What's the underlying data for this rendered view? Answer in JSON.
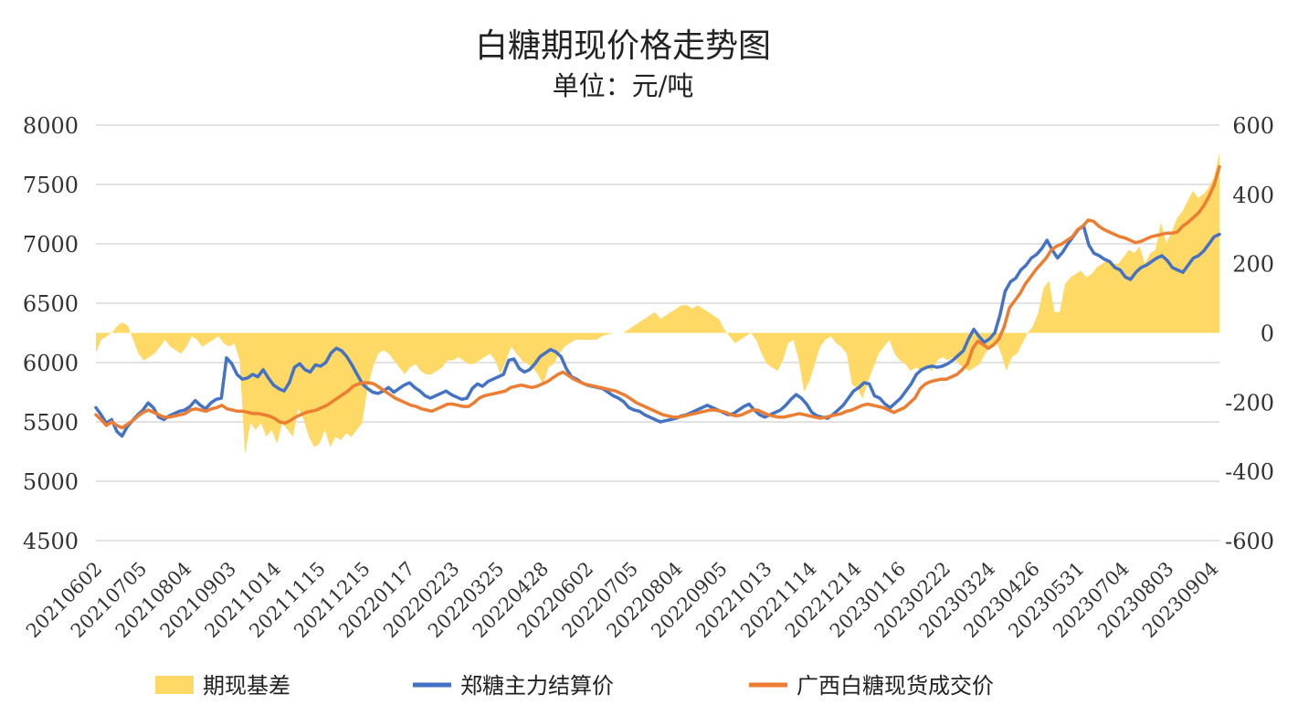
{
  "chart_data": {
    "type": "line",
    "title": "白糖期现价格走势图",
    "subtitle": "单位：元/吨",
    "y_left": {
      "min": 4500,
      "max": 8000,
      "ticks": [
        4500,
        5000,
        5500,
        6000,
        6500,
        7000,
        7500,
        8000
      ]
    },
    "y_right": {
      "min": -600,
      "max": 600,
      "ticks": [
        -600,
        -400,
        -200,
        0,
        200,
        400,
        600
      ]
    },
    "grid": true,
    "legend_position": "bottom",
    "x_tick_labels": [
      "20210602",
      "20210705",
      "20210804",
      "20210903",
      "20211014",
      "20211115",
      "20211215",
      "20220117",
      "20220223",
      "20220325",
      "20220428",
      "20220602",
      "20220705",
      "20220804",
      "20220905",
      "20221013",
      "20221114",
      "20221214",
      "20230116",
      "20230222",
      "20230324",
      "20230426",
      "20230531",
      "20230704",
      "20230803",
      "20230904"
    ],
    "series": [
      {
        "name": "期现基差",
        "kind": "area",
        "axis": "right",
        "color": "#FFD966",
        "values": [
          -60,
          -20,
          -10,
          0,
          20,
          30,
          20,
          -20,
          -60,
          -80,
          -70,
          -60,
          -40,
          -20,
          -40,
          -50,
          -60,
          -40,
          -10,
          -20,
          -40,
          -30,
          -20,
          -10,
          -30,
          -40,
          -30,
          -80,
          -350,
          -260,
          -280,
          -260,
          -300,
          -280,
          -320,
          -260,
          -280,
          -300,
          -220,
          -250,
          -300,
          -330,
          -320,
          -280,
          -330,
          -300,
          -310,
          -290,
          -300,
          -280,
          -260,
          -160,
          -100,
          -60,
          -50,
          -60,
          -80,
          -100,
          -120,
          -100,
          -90,
          -110,
          -120,
          -120,
          -110,
          -100,
          -80,
          -80,
          -70,
          -80,
          -90,
          -90,
          -80,
          -70,
          -60,
          -80,
          -120,
          -80,
          -40,
          -60,
          -80,
          -90,
          -100,
          -120,
          -150,
          -100,
          -90,
          -60,
          -40,
          -30,
          -20,
          -20,
          -20,
          -20,
          -20,
          -10,
          -5,
          0,
          0,
          0,
          10,
          20,
          30,
          40,
          50,
          60,
          40,
          50,
          60,
          70,
          80,
          80,
          70,
          80,
          70,
          60,
          50,
          40,
          10,
          -10,
          -30,
          -20,
          -10,
          0,
          -20,
          -60,
          -90,
          -100,
          -110,
          -80,
          -30,
          -20,
          -80,
          -170,
          -140,
          -90,
          -40,
          -20,
          -10,
          -30,
          -40,
          -60,
          -150,
          -160,
          -190,
          -140,
          -100,
          -60,
          -40,
          -20,
          -60,
          -80,
          -90,
          -110,
          -100,
          -110,
          -100,
          -110,
          -80,
          -70,
          -80,
          -70,
          -90,
          -100,
          -110,
          -100,
          -90,
          -60,
          -40,
          -20,
          -60,
          -110,
          -70,
          -60,
          -30,
          0,
          20,
          60,
          130,
          150,
          60,
          60,
          140,
          160,
          170,
          180,
          160,
          170,
          190,
          200,
          210,
          200,
          200,
          220,
          240,
          230,
          250,
          200,
          230,
          240,
          320,
          260,
          290,
          330,
          350,
          380,
          410,
          390,
          400,
          420,
          450,
          520
        ]
      },
      {
        "name": "郑糖主力结算价",
        "kind": "line",
        "axis": "left",
        "color": "#4472C4",
        "values": [
          5620,
          5560,
          5490,
          5520,
          5420,
          5380,
          5460,
          5510,
          5560,
          5600,
          5660,
          5620,
          5540,
          5520,
          5550,
          5570,
          5590,
          5600,
          5630,
          5680,
          5640,
          5610,
          5660,
          5690,
          5700,
          6040,
          5990,
          5900,
          5860,
          5870,
          5900,
          5880,
          5940,
          5870,
          5810,
          5780,
          5760,
          5830,
          5960,
          5990,
          5940,
          5920,
          5980,
          5970,
          6000,
          6080,
          6120,
          6100,
          6050,
          5980,
          5900,
          5820,
          5780,
          5750,
          5740,
          5760,
          5790,
          5750,
          5780,
          5810,
          5830,
          5790,
          5760,
          5720,
          5700,
          5720,
          5740,
          5760,
          5730,
          5710,
          5690,
          5700,
          5780,
          5820,
          5800,
          5840,
          5860,
          5880,
          5900,
          6020,
          6030,
          5950,
          5920,
          5940,
          5990,
          6050,
          6080,
          6110,
          6090,
          6050,
          5950,
          5880,
          5860,
          5830,
          5810,
          5800,
          5790,
          5780,
          5750,
          5720,
          5700,
          5670,
          5620,
          5600,
          5590,
          5560,
          5540,
          5520,
          5500,
          5510,
          5520,
          5530,
          5550,
          5560,
          5580,
          5600,
          5620,
          5640,
          5620,
          5600,
          5580,
          5560,
          5570,
          5600,
          5630,
          5650,
          5600,
          5560,
          5540,
          5560,
          5580,
          5600,
          5640,
          5690,
          5730,
          5700,
          5650,
          5580,
          5550,
          5540,
          5530,
          5560,
          5600,
          5640,
          5700,
          5760,
          5790,
          5830,
          5820,
          5720,
          5700,
          5650,
          5620,
          5660,
          5700,
          5760,
          5820,
          5900,
          5940,
          5960,
          5970,
          5960,
          5970,
          5990,
          6020,
          6060,
          6100,
          6200,
          6280,
          6220,
          6170,
          6200,
          6250,
          6400,
          6600,
          6680,
          6710,
          6780,
          6820,
          6880,
          6910,
          6960,
          7030,
          6950,
          6880,
          6930,
          7000,
          7060,
          7120,
          7150,
          6990,
          6920,
          6900,
          6870,
          6850,
          6800,
          6780,
          6720,
          6700,
          6760,
          6800,
          6820,
          6850,
          6880,
          6900,
          6860,
          6800,
          6780,
          6760,
          6820,
          6880,
          6900,
          6940,
          7000,
          7060,
          7080
        ]
      },
      {
        "name": "广西白糖现货成交价",
        "kind": "line",
        "axis": "left",
        "color": "#ED7D31",
        "values": [
          5560,
          5520,
          5470,
          5500,
          5470,
          5450,
          5480,
          5510,
          5550,
          5580,
          5600,
          5580,
          5560,
          5540,
          5540,
          5550,
          5560,
          5570,
          5600,
          5610,
          5600,
          5590,
          5610,
          5620,
          5640,
          5610,
          5600,
          5590,
          5590,
          5580,
          5570,
          5570,
          5560,
          5550,
          5530,
          5500,
          5490,
          5510,
          5540,
          5560,
          5580,
          5590,
          5600,
          5620,
          5640,
          5670,
          5700,
          5730,
          5760,
          5800,
          5820,
          5830,
          5830,
          5820,
          5790,
          5760,
          5730,
          5700,
          5680,
          5660,
          5640,
          5630,
          5610,
          5600,
          5590,
          5610,
          5630,
          5650,
          5650,
          5640,
          5630,
          5630,
          5660,
          5700,
          5720,
          5730,
          5740,
          5750,
          5760,
          5790,
          5800,
          5810,
          5800,
          5790,
          5800,
          5820,
          5840,
          5870,
          5900,
          5920,
          5890,
          5860,
          5840,
          5820,
          5810,
          5800,
          5790,
          5780,
          5770,
          5760,
          5740,
          5720,
          5690,
          5660,
          5640,
          5620,
          5600,
          5580,
          5560,
          5550,
          5540,
          5540,
          5550,
          5560,
          5570,
          5580,
          5590,
          5600,
          5600,
          5590,
          5580,
          5560,
          5550,
          5560,
          5580,
          5600,
          5600,
          5580,
          5560,
          5550,
          5540,
          5540,
          5550,
          5560,
          5570,
          5560,
          5550,
          5540,
          5530,
          5540,
          5550,
          5560,
          5570,
          5590,
          5600,
          5620,
          5640,
          5650,
          5640,
          5630,
          5620,
          5600,
          5580,
          5600,
          5620,
          5660,
          5700,
          5780,
          5820,
          5840,
          5850,
          5860,
          5860,
          5880,
          5900,
          5940,
          5990,
          6120,
          6180,
          6150,
          6120,
          6150,
          6200,
          6300,
          6460,
          6520,
          6580,
          6660,
          6720,
          6780,
          6830,
          6880,
          6950,
          6980,
          7000,
          7030,
          7060,
          7120,
          7150,
          7200,
          7190,
          7150,
          7120,
          7100,
          7080,
          7060,
          7050,
          7030,
          7010,
          7020,
          7040,
          7060,
          7070,
          7080,
          7090,
          7090,
          7100,
          7150,
          7180,
          7220,
          7260,
          7320,
          7400,
          7500,
          7650
        ]
      }
    ]
  }
}
